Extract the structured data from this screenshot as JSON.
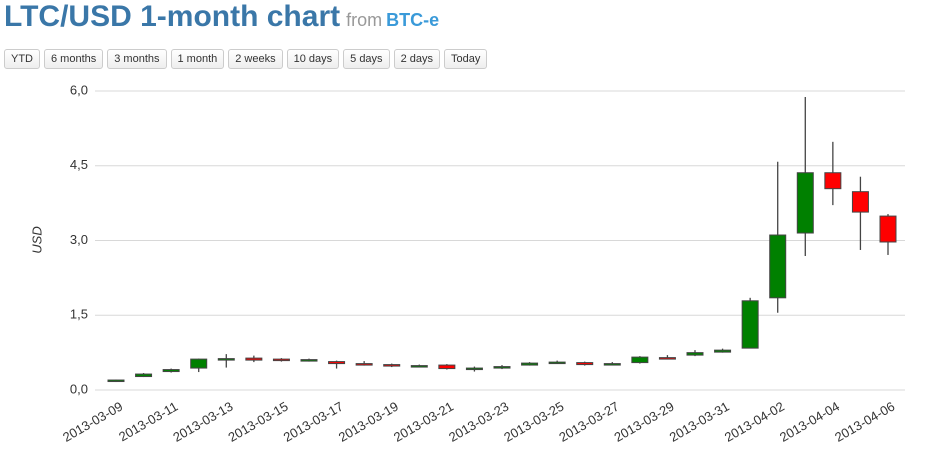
{
  "chart_data": {
    "type": "candlestick",
    "title": "LTC/USD 1-month chart",
    "source_prefix": "from",
    "source": "BTC-e",
    "buttons": [
      "YTD",
      "6 months",
      "3 months",
      "1 month",
      "2 weeks",
      "10 days",
      "5 days",
      "2 days",
      "Today"
    ],
    "ylabel": "USD",
    "categories": [
      "2013-03-09",
      null,
      "2013-03-11",
      null,
      "2013-03-13",
      null,
      "2013-03-15",
      null,
      "2013-03-17",
      null,
      "2013-03-19",
      null,
      "2013-03-21",
      null,
      "2013-03-23",
      null,
      "2013-03-25",
      null,
      "2013-03-27",
      null,
      "2013-03-29",
      null,
      "2013-03-31",
      null,
      "2013-04-02",
      null,
      "2013-04-04",
      null,
      "2013-04-06"
    ],
    "open": [
      0.17,
      0.27,
      0.37,
      0.44,
      0.6,
      0.64,
      0.62,
      0.6,
      0.57,
      0.53,
      0.51,
      0.48,
      0.5,
      0.43,
      0.44,
      0.5,
      0.54,
      0.55,
      0.51,
      0.55,
      0.65,
      0.7,
      0.76,
      0.84,
      1.85,
      3.15,
      4.36,
      3.98,
      3.49
    ],
    "high": [
      0.21,
      0.34,
      0.43,
      0.63,
      0.72,
      0.69,
      0.64,
      0.63,
      0.59,
      0.58,
      0.53,
      0.51,
      0.52,
      0.47,
      0.5,
      0.56,
      0.59,
      0.57,
      0.56,
      0.68,
      0.7,
      0.8,
      0.83,
      1.85,
      4.58,
      5.88,
      4.98,
      4.28,
      3.53
    ],
    "low": [
      0.16,
      0.26,
      0.35,
      0.36,
      0.45,
      0.56,
      0.57,
      0.57,
      0.43,
      0.49,
      0.46,
      0.46,
      0.41,
      0.37,
      0.42,
      0.49,
      0.53,
      0.49,
      0.5,
      0.53,
      0.62,
      0.68,
      0.75,
      0.84,
      1.55,
      2.69,
      3.71,
      2.81,
      2.71
    ],
    "close": [
      0.2,
      0.32,
      0.41,
      0.62,
      0.63,
      0.6,
      0.6,
      0.61,
      0.53,
      0.52,
      0.48,
      0.49,
      0.43,
      0.44,
      0.47,
      0.54,
      0.56,
      0.51,
      0.53,
      0.66,
      0.64,
      0.75,
      0.8,
      1.79,
      3.11,
      4.36,
      4.04,
      3.57,
      2.97
    ],
    "up_color": "#008000",
    "down_color": "#ff0000",
    "ylim": [
      0,
      6
    ],
    "yticks": [
      {
        "value": 0,
        "label": "0,0"
      },
      {
        "value": 1.5,
        "label": "1,5"
      },
      {
        "value": 3,
        "label": "3,0"
      },
      {
        "value": 4.5,
        "label": "4,5"
      },
      {
        "value": 6,
        "label": "6,0"
      }
    ],
    "grid": true
  }
}
